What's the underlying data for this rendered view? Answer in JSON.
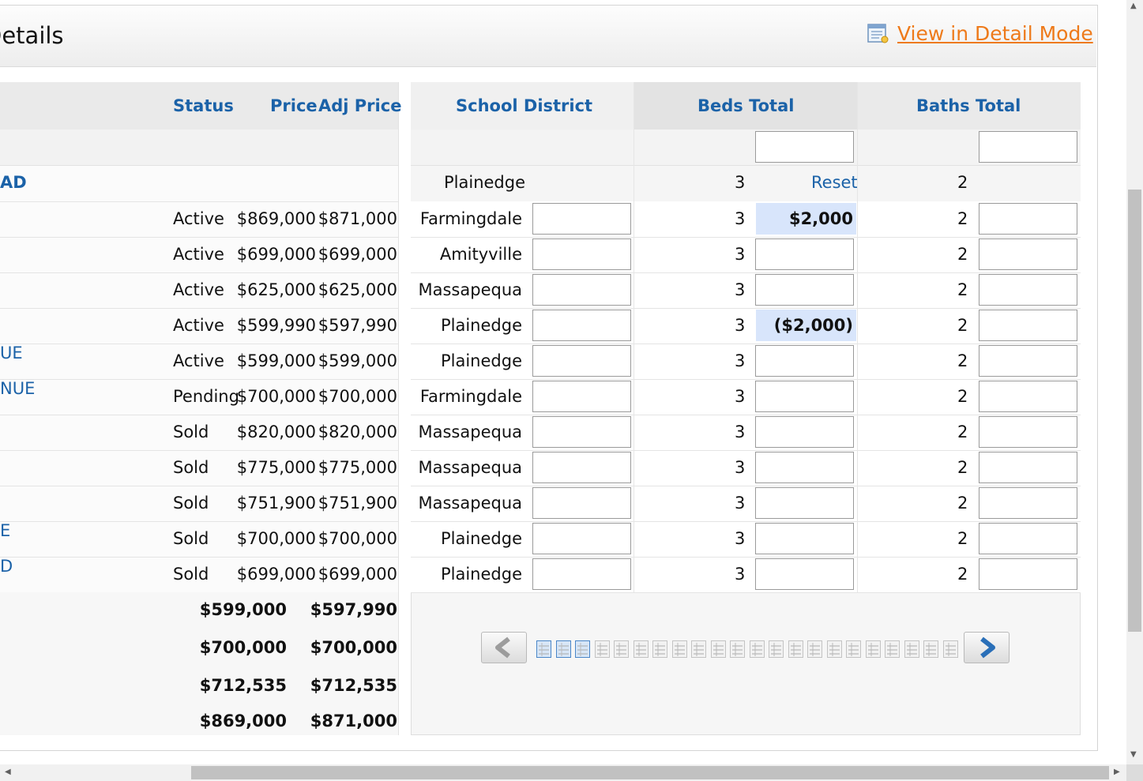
{
  "header": {
    "title": "Details",
    "detail_link": "View in Detail Mode"
  },
  "left": {
    "columns": {
      "status": "Status",
      "price": "Price",
      "adj_price": "Adj Price"
    },
    "subject_label": "AD",
    "rows": [
      {
        "addr": "",
        "status": "Active",
        "price": "$869,000",
        "adj": "$871,000"
      },
      {
        "addr": "",
        "status": "Active",
        "price": "$699,000",
        "adj": "$699,000"
      },
      {
        "addr": "",
        "status": "Active",
        "price": "$625,000",
        "adj": "$625,000"
      },
      {
        "addr": "",
        "status": "Active",
        "price": "$599,990",
        "adj": "$597,990"
      },
      {
        "addr": "UE",
        "status": "Active",
        "price": "$599,000",
        "adj": "$599,000"
      },
      {
        "addr": "NUE",
        "status": "Pending",
        "price": "$700,000",
        "adj": "$700,000"
      },
      {
        "addr": "",
        "status": "Sold",
        "price": "$820,000",
        "adj": "$820,000"
      },
      {
        "addr": "",
        "status": "Sold",
        "price": "$775,000",
        "adj": "$775,000"
      },
      {
        "addr": "",
        "status": "Sold",
        "price": "$751,900",
        "adj": "$751,900"
      },
      {
        "addr": "E",
        "status": "Sold",
        "price": "$700,000",
        "adj": "$700,000"
      },
      {
        "addr": "D",
        "status": "Sold",
        "price": "$699,000",
        "adj": "$699,000"
      }
    ],
    "summary": [
      {
        "price": "$599,000",
        "adj": "$597,990"
      },
      {
        "price": "$700,000",
        "adj": "$700,000"
      },
      {
        "price": "$712,535",
        "adj": "$712,535"
      },
      {
        "price": "$869,000",
        "adj": "$871,000"
      }
    ]
  },
  "right": {
    "columns": {
      "school": "School District",
      "beds": "Beds Total",
      "baths": "Baths Total"
    },
    "subject": {
      "school": "Plainedge",
      "beds": "3",
      "reset": "Reset",
      "baths": "2"
    },
    "rows": [
      {
        "school": "Farmingdale",
        "beds": "3",
        "beds_adj": "$2,000",
        "baths": "2"
      },
      {
        "school": "Amityville",
        "beds": "3",
        "beds_adj": "",
        "baths": "2"
      },
      {
        "school": "Massapequa",
        "beds": "3",
        "beds_adj": "",
        "baths": "2"
      },
      {
        "school": "Plainedge",
        "beds": "3",
        "beds_adj": "($2,000)",
        "baths": "2"
      },
      {
        "school": "Plainedge",
        "beds": "3",
        "beds_adj": "",
        "baths": "2"
      },
      {
        "school": "Farmingdale",
        "beds": "3",
        "beds_adj": "",
        "baths": "2"
      },
      {
        "school": "Massapequa",
        "beds": "3",
        "beds_adj": "",
        "baths": "2"
      },
      {
        "school": "Massapequa",
        "beds": "3",
        "beds_adj": "",
        "baths": "2"
      },
      {
        "school": "Massapequa",
        "beds": "3",
        "beds_adj": "",
        "baths": "2"
      },
      {
        "school": "Plainedge",
        "beds": "3",
        "beds_adj": "",
        "baths": "2"
      },
      {
        "school": "Plainedge",
        "beds": "3",
        "beds_adj": "",
        "baths": "2"
      }
    ]
  },
  "pager": {
    "pages": 22,
    "active_pages": 3,
    "prev_icon": "chevron-left-icon",
    "next_icon": "chevron-right-icon"
  },
  "colors": {
    "link": "#1b62a8",
    "detail_link": "#ee7a1a",
    "adjust_highlight": "#d8e5fb"
  }
}
